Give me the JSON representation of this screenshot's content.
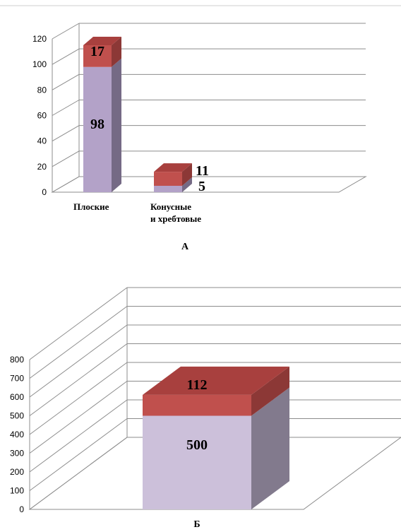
{
  "colors": {
    "lower_front": "#b3a2c8",
    "lower_side": "#756a85",
    "upper_front": "#c0504d",
    "upper_side": "#8c3836",
    "upper_top": "#a8403e",
    "lower2_front": "#ccc0da",
    "lower2_side": "#827a8d",
    "grid": "#8c8c8c"
  },
  "chart_data": [
    {
      "type": "bar",
      "stacked": true,
      "three_d": true,
      "caption": "А",
      "categories": [
        "Плоские",
        "Конусные и хребтовые"
      ],
      "category_label_lines": [
        [
          "Плоские"
        ],
        [
          "Конусные",
          "и хребтовые"
        ]
      ],
      "series": [
        {
          "values": [
            98,
            5
          ]
        },
        {
          "values": [
            17,
            11
          ]
        }
      ],
      "data_labels": [
        [
          "98",
          "5"
        ],
        [
          "17",
          "11"
        ]
      ],
      "y_ticks": [
        "0",
        "20",
        "40",
        "60",
        "80",
        "100",
        "120"
      ],
      "ylim": [
        0,
        120
      ],
      "grid": true
    },
    {
      "type": "bar",
      "stacked": true,
      "three_d": true,
      "caption": "Б",
      "categories": [
        ""
      ],
      "series": [
        {
          "values": [
            500
          ]
        },
        {
          "values": [
            112
          ]
        }
      ],
      "data_labels": [
        [
          "500"
        ],
        [
          "112"
        ]
      ],
      "y_ticks": [
        "0",
        "100",
        "200",
        "300",
        "400",
        "500",
        "600",
        "700",
        "800"
      ],
      "ylim": [
        0,
        800
      ],
      "grid": true
    }
  ]
}
